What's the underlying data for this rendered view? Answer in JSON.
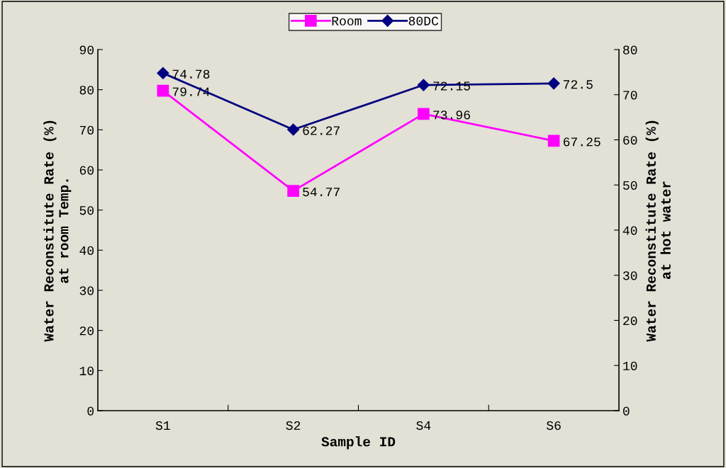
{
  "chart_data": {
    "type": "line",
    "xlabel": "Sample ID",
    "ylabel": "Water Reconstitute Rate (%)\nat room Temp.",
    "y2label": "Water Reconstitute Rate (%)\nat hot water",
    "categories": [
      "S1",
      "S2",
      "S4",
      "S6"
    ],
    "series": [
      {
        "name": "Room",
        "color": "#ff00ff",
        "marker": "square",
        "values": [
          79.74,
          54.77,
          73.96,
          67.25
        ]
      },
      {
        "name": "80DC",
        "color": "#000080",
        "marker": "diamond",
        "axis": "y2",
        "values": [
          74.78,
          62.27,
          72.15,
          72.5
        ]
      }
    ],
    "ylim": [
      0,
      90
    ],
    "yticks": [
      0,
      10,
      20,
      30,
      40,
      50,
      60,
      70,
      80,
      90
    ],
    "y2lim": [
      0,
      80
    ],
    "y2ticks": [
      0,
      10,
      20,
      30,
      40,
      50,
      60,
      70,
      80
    ],
    "data_labels": true,
    "legend": "top",
    "grid": false,
    "line_style": "solid"
  }
}
